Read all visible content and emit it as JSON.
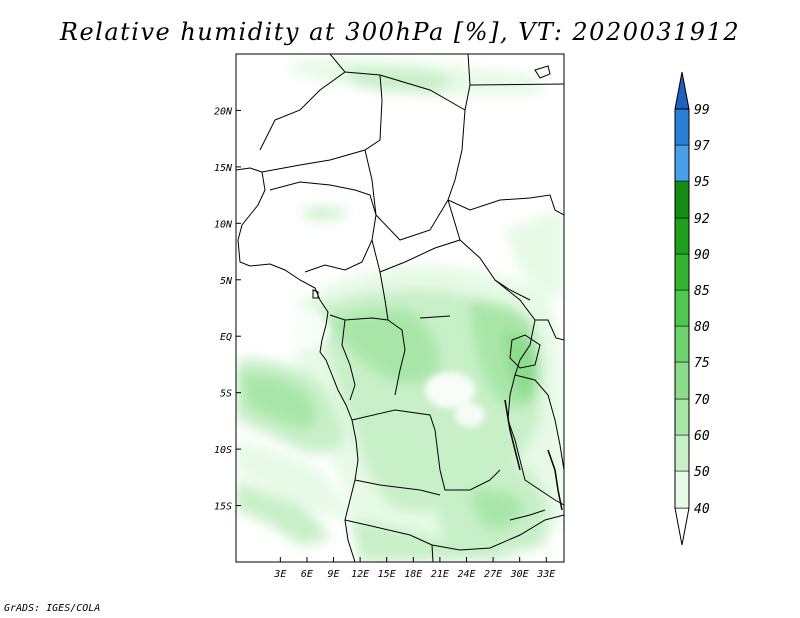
{
  "title": "Relative humidity at 300hPa [%], VT: 2020031912",
  "credit": "GrADS: IGES/COLA",
  "map": {
    "lon_range": [
      -2,
      35
    ],
    "lat_range": [
      -20,
      25
    ],
    "x_ticks": [
      {
        "value": 3,
        "label": "3E"
      },
      {
        "value": 6,
        "label": "6E"
      },
      {
        "value": 9,
        "label": "9E"
      },
      {
        "value": 12,
        "label": "12E"
      },
      {
        "value": 15,
        "label": "15E"
      },
      {
        "value": 18,
        "label": "18E"
      },
      {
        "value": 21,
        "label": "21E"
      },
      {
        "value": 24,
        "label": "24E"
      },
      {
        "value": 27,
        "label": "27E"
      },
      {
        "value": 30,
        "label": "30E"
      },
      {
        "value": 33,
        "label": "33E"
      }
    ],
    "y_ticks": [
      {
        "value": 20,
        "label": "20N"
      },
      {
        "value": 15,
        "label": "15N"
      },
      {
        "value": 10,
        "label": "10N"
      },
      {
        "value": 5,
        "label": "5N"
      },
      {
        "value": 0,
        "label": "EQ"
      },
      {
        "value": -5,
        "label": "5S"
      },
      {
        "value": -10,
        "label": "10S"
      },
      {
        "value": -15,
        "label": "15S"
      }
    ]
  },
  "colorbar": {
    "levels": [
      "40",
      "50",
      "60",
      "70",
      "75",
      "80",
      "85",
      "90",
      "92",
      "95",
      "97",
      "99"
    ],
    "colors": [
      "#ffffff",
      "#e6fae6",
      "#c8f0c8",
      "#a8e6a8",
      "#8cdc8c",
      "#6ed26e",
      "#50c850",
      "#32b432",
      "#1ea01e",
      "#148c14",
      "#4a9fea",
      "#2a7fd8",
      "#1e62c0"
    ]
  }
}
